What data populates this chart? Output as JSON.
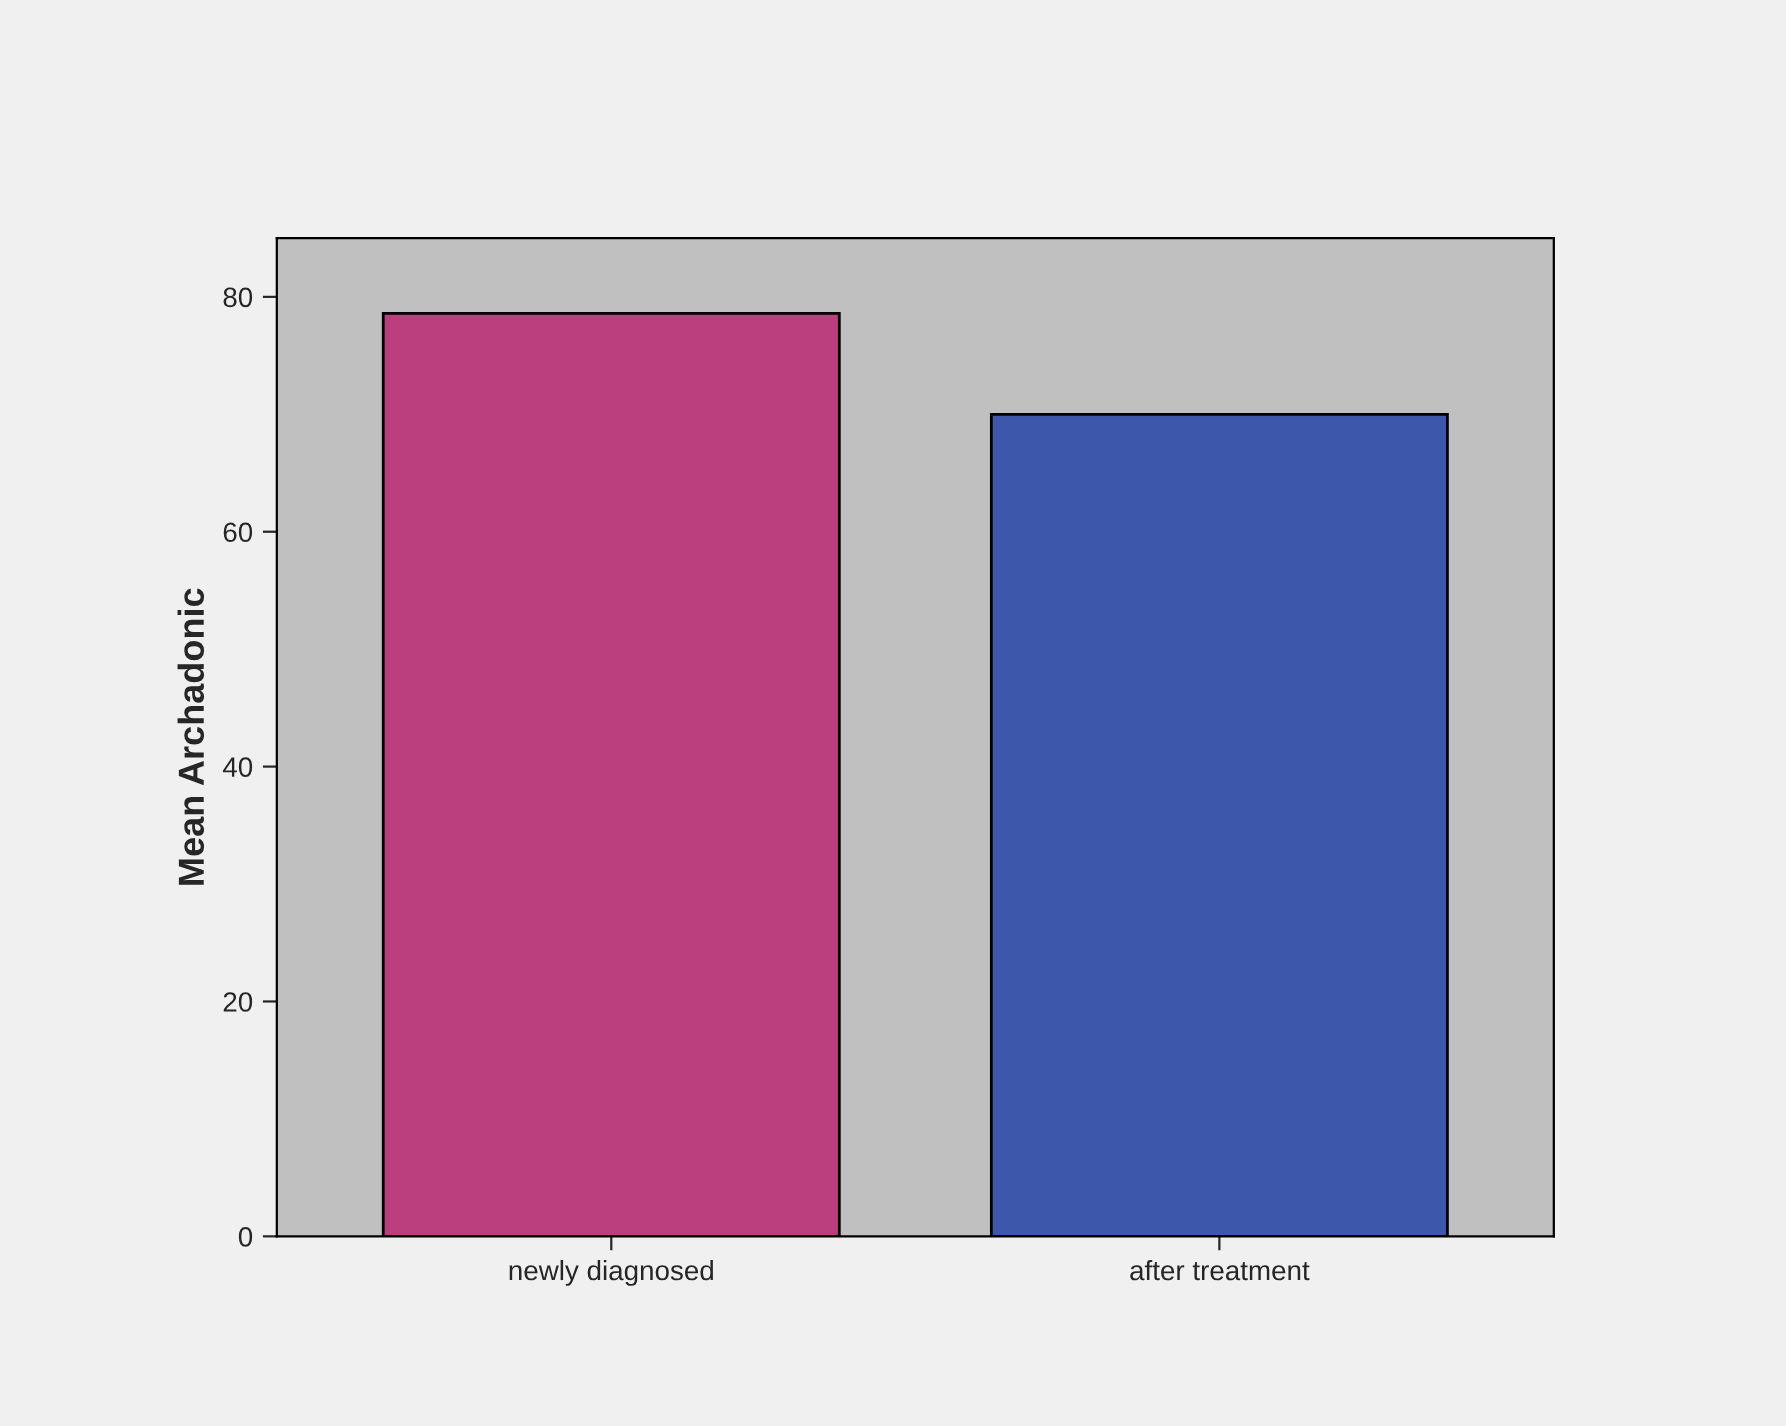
{
  "chart_data": {
    "type": "bar",
    "ylabel": "Mean Archadonic",
    "categories": [
      "newly diagnosed",
      "after treatment"
    ],
    "values": [
      78.6,
      70.0
    ],
    "colors": [
      "#bb3f7e",
      "#3d58ab"
    ],
    "ylim": [
      0,
      85
    ],
    "yticks": [
      0,
      20,
      40,
      60,
      80
    ],
    "grid": false
  }
}
